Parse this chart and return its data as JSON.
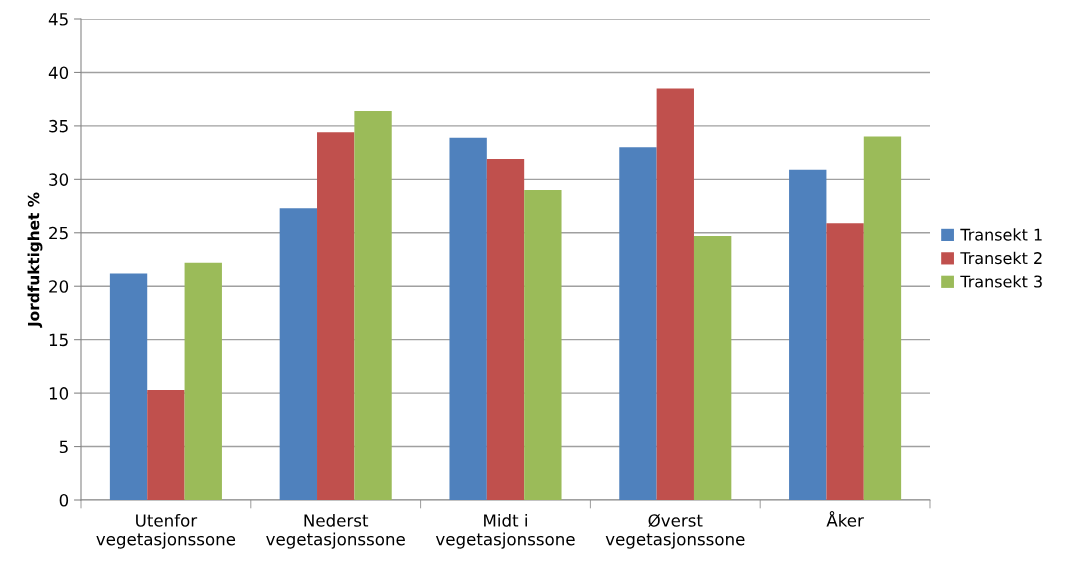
{
  "chart_data": {
    "type": "bar",
    "ylabel": "Jordfuktighet %",
    "categories": [
      "Utenfor\nvegetasjonssone",
      "Nederst\nvegetasjonssone",
      "Midt i\nvegetasjonssone",
      "Øverst\nvegetasjonssone",
      "Åker"
    ],
    "series": [
      {
        "name": "Transekt 1",
        "color": "#4f81bd",
        "values": [
          21.2,
          27.3,
          33.9,
          33.0,
          30.9
        ]
      },
      {
        "name": "Transekt 2",
        "color": "#c0504d",
        "values": [
          10.3,
          34.4,
          31.9,
          38.5,
          25.9
        ]
      },
      {
        "name": "Transekt 3",
        "color": "#9bbb59",
        "values": [
          22.2,
          36.4,
          29.0,
          24.7,
          34.0
        ]
      }
    ],
    "ylim": [
      0,
      45
    ],
    "yticks": [
      0,
      5,
      10,
      15,
      20,
      25,
      30,
      35,
      40,
      45
    ],
    "grid": "y",
    "legend": "right"
  }
}
